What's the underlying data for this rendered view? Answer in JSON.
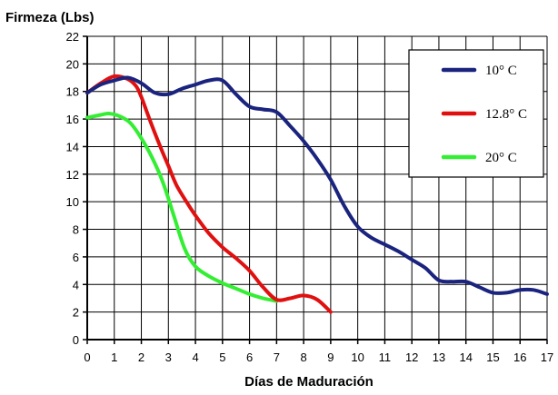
{
  "chart_data": {
    "type": "line",
    "ylabel": "Firmeza (Lbs)",
    "xlabel": "Días de Maduración",
    "xlim": [
      0,
      17
    ],
    "ylim": [
      0,
      22
    ],
    "x_ticks": [
      "0",
      "1",
      "2",
      "3",
      "4",
      "5",
      "6",
      "7",
      "8",
      "9",
      "10",
      "11",
      "12",
      "13",
      "14",
      "15",
      "16",
      "17"
    ],
    "y_ticks": [
      "0",
      "2",
      "4",
      "6",
      "8",
      "10",
      "12",
      "14",
      "16",
      "18",
      "20",
      "22"
    ],
    "grid": true,
    "legend_position": "top-right",
    "series": [
      {
        "name": "10° C",
        "color": "#1a237e",
        "points": [
          [
            0,
            17.9
          ],
          [
            0.5,
            18.5
          ],
          [
            1,
            18.8
          ],
          [
            1.5,
            19.0
          ],
          [
            2,
            18.6
          ],
          [
            2.5,
            17.9
          ],
          [
            3,
            17.8
          ],
          [
            3.5,
            18.2
          ],
          [
            4,
            18.5
          ],
          [
            4.5,
            18.8
          ],
          [
            5,
            18.8
          ],
          [
            5.5,
            17.8
          ],
          [
            6,
            16.9
          ],
          [
            6.5,
            16.7
          ],
          [
            7,
            16.5
          ],
          [
            7.5,
            15.5
          ],
          [
            8,
            14.4
          ],
          [
            8.5,
            13.1
          ],
          [
            9,
            11.6
          ],
          [
            9.5,
            9.7
          ],
          [
            10,
            8.2
          ],
          [
            10.5,
            7.4
          ],
          [
            11,
            6.9
          ],
          [
            11.5,
            6.4
          ],
          [
            12,
            5.8
          ],
          [
            12.5,
            5.2
          ],
          [
            13,
            4.3
          ],
          [
            13.5,
            4.2
          ],
          [
            14,
            4.2
          ],
          [
            14.5,
            3.8
          ],
          [
            15,
            3.4
          ],
          [
            15.5,
            3.4
          ],
          [
            16,
            3.6
          ],
          [
            16.5,
            3.6
          ],
          [
            17,
            3.3
          ]
        ]
      },
      {
        "name": "12.8° C",
        "color": "#e01010",
        "points": [
          [
            0,
            17.9
          ],
          [
            0.5,
            18.6
          ],
          [
            1,
            19.1
          ],
          [
            1.5,
            18.9
          ],
          [
            1.8,
            18.4
          ],
          [
            2,
            17.6
          ],
          [
            2.3,
            16.0
          ],
          [
            2.7,
            14.0
          ],
          [
            3,
            12.6
          ],
          [
            3.3,
            11.2
          ],
          [
            3.7,
            9.9
          ],
          [
            4,
            9.0
          ],
          [
            4.5,
            7.7
          ],
          [
            5,
            6.7
          ],
          [
            5.5,
            5.9
          ],
          [
            6,
            5.0
          ],
          [
            6.5,
            3.8
          ],
          [
            7,
            2.9
          ],
          [
            7.5,
            3.0
          ],
          [
            8,
            3.2
          ],
          [
            8.5,
            2.9
          ],
          [
            9,
            2.0
          ]
        ]
      },
      {
        "name": "20° C",
        "color": "#33ee33",
        "points": [
          [
            0,
            16.1
          ],
          [
            0.5,
            16.3
          ],
          [
            0.8,
            16.4
          ],
          [
            1.2,
            16.2
          ],
          [
            1.6,
            15.7
          ],
          [
            2,
            14.6
          ],
          [
            2.4,
            13.2
          ],
          [
            2.8,
            11.4
          ],
          [
            3.2,
            9.0
          ],
          [
            3.6,
            6.6
          ],
          [
            4,
            5.3
          ],
          [
            4.5,
            4.6
          ],
          [
            5,
            4.1
          ],
          [
            5.5,
            3.7
          ],
          [
            6,
            3.3
          ],
          [
            6.5,
            3.0
          ],
          [
            7,
            2.8
          ]
        ]
      }
    ]
  }
}
